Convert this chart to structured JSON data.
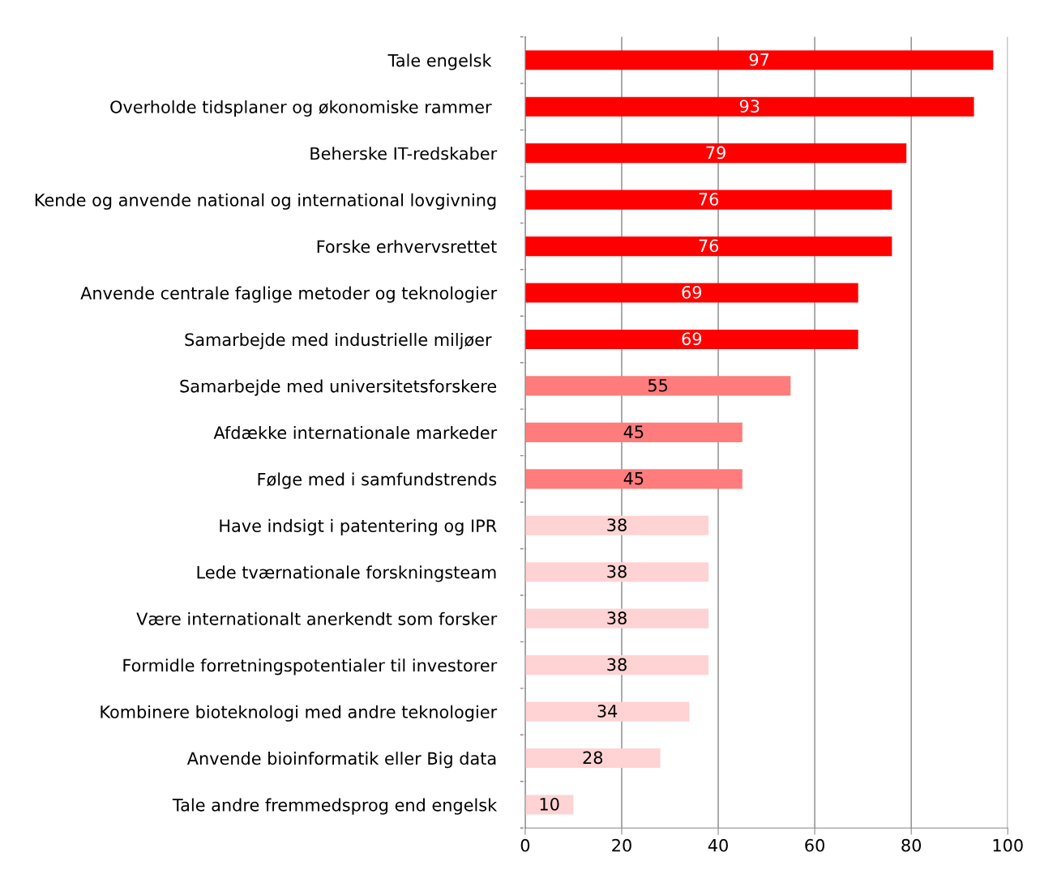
{
  "chart_data": {
    "type": "bar",
    "orientation": "horizontal",
    "categories": [
      "Tale engelsk ",
      "Overholde tidsplaner og økonomiske rammer ",
      "Beherske IT-redskaber",
      "Kende og anvende national og international lovgivning",
      "Forske erhvervsrettet",
      "Anvende centrale faglige metoder og teknologier",
      "Samarbejde med industrielle miljøer ",
      "Samarbejde med universitetsforskere",
      "Afdække internationale markeder",
      "Følge med i samfundstrends",
      "Have indsigt i patentering og IPR",
      "Lede tværnationale forskningsteam",
      "Være internationalt anerkendt som forsker",
      "Formidle forretningspotentialer til investorer",
      "Kombinere bioteknologi med andre teknologier",
      "Anvende bioinformatik eller Big data",
      "Tale andre fremmedsprog end engelsk"
    ],
    "values": [
      97,
      93,
      79,
      76,
      76,
      69,
      69,
      55,
      45,
      45,
      38,
      38,
      38,
      38,
      34,
      28,
      10
    ],
    "colors": [
      "#ff0000",
      "#ff0000",
      "#ff0000",
      "#ff0000",
      "#ff0000",
      "#ff0000",
      "#ff0000",
      "#ff7c7c",
      "#ff7c7c",
      "#ff7c7c",
      "#ffd3d3",
      "#ffd3d3",
      "#ffd3d3",
      "#ffd3d3",
      "#ffd3d3",
      "#ffd3d3",
      "#ffd3d3"
    ],
    "xlim": [
      0,
      100
    ],
    "xticks": [
      0,
      20,
      40,
      60,
      80,
      100
    ],
    "grid": "x",
    "data_labels": true,
    "legend": false
  }
}
